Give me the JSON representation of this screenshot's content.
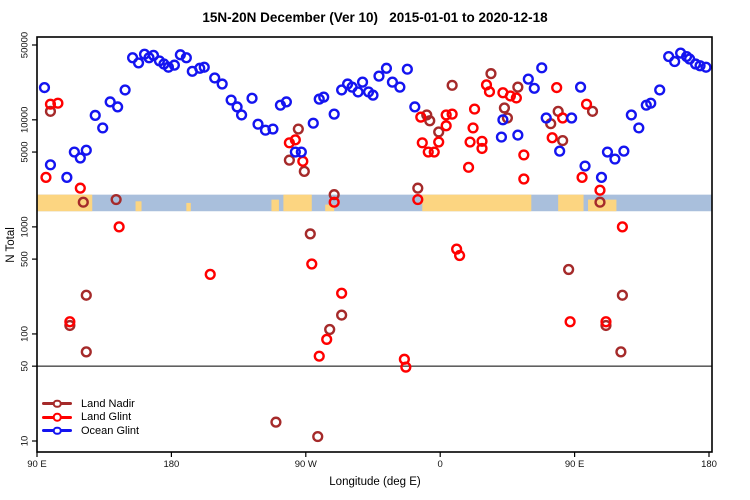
{
  "title": "15N-20N December (Ver 10)   2015-01-01 to 2020-12-18",
  "legend": {
    "items": [
      {
        "label": "Land Nadir",
        "color": "#A52A2A"
      },
      {
        "label": "Land Glint",
        "color": "#FF0000"
      },
      {
        "label": "Ocean Glint",
        "color": "#1414F0"
      }
    ]
  },
  "chart_data": {
    "type": "scatter",
    "title": "15N-20N December (Ver 10)   2015-01-01 to 2020-12-18",
    "xlabel": "Longitude (deg E)",
    "ylabel": "N Total",
    "x_axis": {
      "range_deg_east": [
        90,
        540
      ],
      "ticks": [
        {
          "lon": 90,
          "label": "90 E"
        },
        {
          "lon": 180,
          "label": "180"
        },
        {
          "lon": 270,
          "label": "90 W"
        },
        {
          "lon": 360,
          "label": "0"
        },
        {
          "lon": 450,
          "label": "90 E"
        },
        {
          "lon": 540,
          "label": "180"
        }
      ]
    },
    "y_axis": {
      "scale": "log",
      "range": [
        10,
        50000
      ],
      "ticks": [
        10,
        50,
        100,
        500,
        1000,
        5000,
        10000,
        50000
      ]
    },
    "reference_line_n": 50,
    "land_ocean_band": {
      "n_top": 2000,
      "n_bottom": 1400,
      "ocean_color": "#A9BFDC",
      "land_color": "#FCD581",
      "land_patches": [
        {
          "lon_start": 90,
          "lon_end": 127,
          "top_inset": 0
        },
        {
          "lon_start": 156,
          "lon_end": 160,
          "top_inset": 0.4
        },
        {
          "lon_start": 190,
          "lon_end": 193,
          "top_inset": 0.5
        },
        {
          "lon_start": 247,
          "lon_end": 252,
          "top_inset": 0.3
        },
        {
          "lon_start": 255,
          "lon_end": 274,
          "top_inset": 0
        },
        {
          "lon_start": 283,
          "lon_end": 289,
          "top_inset": 0.6
        },
        {
          "lon_start": 348,
          "lon_end": 421,
          "top_inset": 0
        },
        {
          "lon_start": 439,
          "lon_end": 456,
          "top_inset": 0
        },
        {
          "lon_start": 459,
          "lon_end": 478,
          "top_inset": 0.3
        }
      ]
    },
    "series": [
      {
        "name": "Land Nadir",
        "color": "#A52A2A",
        "points": [
          [
            99,
            12000
          ],
          [
            121,
            1700
          ],
          [
            143,
            1800
          ],
          [
            259,
            4200
          ],
          [
            265,
            8200
          ],
          [
            269,
            3300
          ],
          [
            273,
            860
          ],
          [
            289,
            2000
          ],
          [
            345,
            2300
          ],
          [
            351,
            11100
          ],
          [
            353,
            9800
          ],
          [
            359,
            7700
          ],
          [
            368,
            21000
          ],
          [
            394,
            27000
          ],
          [
            403,
            12900
          ],
          [
            405,
            10400
          ],
          [
            412,
            20200
          ],
          [
            434,
            9200
          ],
          [
            439,
            12000
          ],
          [
            442,
            6400
          ],
          [
            462,
            12000
          ],
          [
            467,
            1700
          ],
          [
            112,
            120
          ],
          [
            123,
            230
          ],
          [
            123,
            68
          ],
          [
            250,
            15
          ],
          [
            278,
            11
          ],
          [
            286,
            110
          ],
          [
            294,
            150
          ],
          [
            446,
            400
          ],
          [
            471,
            120
          ],
          [
            481,
            68
          ],
          [
            482,
            230
          ]
        ]
      },
      {
        "name": "Land Glint",
        "color": "#FF0000",
        "points": [
          [
            96,
            2900
          ],
          [
            99,
            14000
          ],
          [
            104,
            14300
          ],
          [
            119,
            2300
          ],
          [
            145,
            1000
          ],
          [
            259,
            6100
          ],
          [
            263,
            6500
          ],
          [
            268,
            4100
          ],
          [
            289,
            1700
          ],
          [
            336,
            58
          ],
          [
            337,
            49
          ],
          [
            345,
            1800
          ],
          [
            347,
            10600
          ],
          [
            348,
            6100
          ],
          [
            352,
            5000
          ],
          [
            356,
            5000
          ],
          [
            359,
            6200
          ],
          [
            364,
            11100
          ],
          [
            364,
            8800
          ],
          [
            368,
            11300
          ],
          [
            371,
            620
          ],
          [
            373,
            540
          ],
          [
            379,
            3600
          ],
          [
            380,
            6200
          ],
          [
            382,
            8400
          ],
          [
            383,
            12600
          ],
          [
            388,
            6300
          ],
          [
            388,
            5400
          ],
          [
            391,
            21200
          ],
          [
            393,
            18300
          ],
          [
            402,
            17900
          ],
          [
            407,
            16700
          ],
          [
            411,
            16000
          ],
          [
            416,
            4700
          ],
          [
            416,
            2800
          ],
          [
            435,
            6800
          ],
          [
            438,
            20000
          ],
          [
            442,
            10400
          ],
          [
            447,
            130
          ],
          [
            455,
            2900
          ],
          [
            458,
            14000
          ],
          [
            467,
            2200
          ],
          [
            471,
            130
          ],
          [
            482,
            1000
          ],
          [
            112,
            130
          ],
          [
            206,
            360
          ],
          [
            274,
            450
          ],
          [
            279,
            62
          ],
          [
            284,
            89
          ],
          [
            294,
            240
          ]
        ]
      },
      {
        "name": "Ocean Glint",
        "color": "#1414F0",
        "points": [
          [
            95,
            20000
          ],
          [
            99,
            3800
          ],
          [
            110,
            2900
          ],
          [
            115,
            5000
          ],
          [
            119,
            4400
          ],
          [
            123,
            5200
          ],
          [
            129,
            11000
          ],
          [
            134,
            8400
          ],
          [
            139,
            14700
          ],
          [
            144,
            13200
          ],
          [
            149,
            19000
          ],
          [
            154,
            38000
          ],
          [
            158,
            34000
          ],
          [
            162,
            41000
          ],
          [
            165,
            38000
          ],
          [
            168,
            40000
          ],
          [
            172,
            35500
          ],
          [
            175,
            33200
          ],
          [
            178,
            31000
          ],
          [
            182,
            32400
          ],
          [
            186,
            40500
          ],
          [
            190,
            38000
          ],
          [
            194,
            28400
          ],
          [
            199,
            30300
          ],
          [
            202,
            31000
          ],
          [
            209,
            24600
          ],
          [
            214,
            21600
          ],
          [
            220,
            15300
          ],
          [
            224,
            13200
          ],
          [
            227,
            11100
          ],
          [
            234,
            15900
          ],
          [
            238,
            9100
          ],
          [
            243,
            8000
          ],
          [
            248,
            8200
          ],
          [
            253,
            13700
          ],
          [
            257,
            14700
          ],
          [
            263,
            5000
          ],
          [
            267,
            5000
          ],
          [
            275,
            9300
          ],
          [
            279,
            15600
          ],
          [
            282,
            16300
          ],
          [
            289,
            11300
          ],
          [
            294,
            19000
          ],
          [
            298,
            21600
          ],
          [
            301,
            20200
          ],
          [
            305,
            18200
          ],
          [
            308,
            22500
          ],
          [
            312,
            18200
          ],
          [
            315,
            17000
          ],
          [
            319,
            25600
          ],
          [
            324,
            30300
          ],
          [
            328,
            22500
          ],
          [
            333,
            20200
          ],
          [
            338,
            29700
          ],
          [
            343,
            13200
          ],
          [
            401,
            6900
          ],
          [
            402,
            10000
          ],
          [
            412,
            7200
          ],
          [
            419,
            24000
          ],
          [
            423,
            19700
          ],
          [
            428,
            30600
          ],
          [
            431,
            10400
          ],
          [
            440,
            5100
          ],
          [
            448,
            10400
          ],
          [
            454,
            20200
          ],
          [
            457,
            3700
          ],
          [
            468,
            2900
          ],
          [
            472,
            5000
          ],
          [
            477,
            4300
          ],
          [
            483,
            5100
          ],
          [
            488,
            11100
          ],
          [
            493,
            8400
          ],
          [
            498,
            13700
          ],
          [
            501,
            14300
          ],
          [
            507,
            19000
          ],
          [
            513,
            39000
          ],
          [
            517,
            35000
          ],
          [
            521,
            42000
          ],
          [
            525,
            39000
          ],
          [
            527,
            37000
          ],
          [
            531,
            33200
          ],
          [
            534,
            32000
          ],
          [
            538,
            31000
          ]
        ]
      }
    ]
  }
}
